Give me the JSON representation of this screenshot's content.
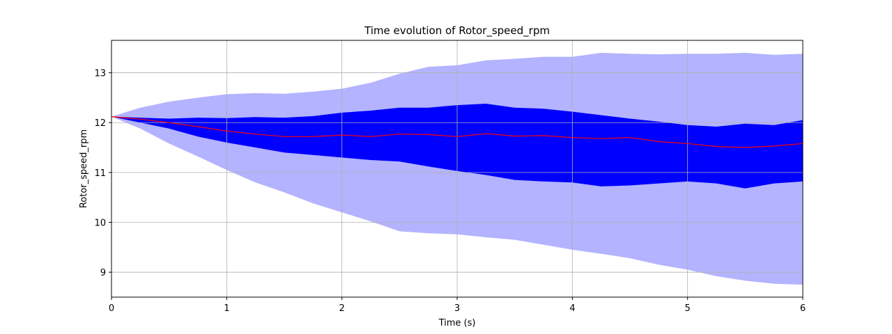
{
  "chart_data": {
    "type": "area",
    "title": "Time evolution of Rotor_speed_rpm",
    "xlabel": "Time (s)",
    "ylabel": "Rotor_speed_rpm",
    "xlim": [
      0,
      6
    ],
    "ylim": [
      8.5,
      13.65
    ],
    "xticks": [
      0,
      1,
      2,
      3,
      4,
      5,
      6
    ],
    "yticks": [
      9,
      10,
      11,
      12,
      13
    ],
    "grid": true,
    "colors": {
      "outer_band": "#b3b3ff",
      "inner_band": "#0000ff",
      "mean_line": "#ff0000",
      "grid": "#b0b0b0"
    },
    "x": [
      0,
      0.25,
      0.5,
      0.75,
      1,
      1.25,
      1.5,
      1.75,
      2,
      2.25,
      2.5,
      2.75,
      3,
      3.25,
      3.5,
      3.75,
      4,
      4.25,
      4.5,
      4.75,
      5,
      5.25,
      5.5,
      5.75,
      6
    ],
    "series": [
      {
        "role": "outer-band",
        "upper": [
          12.12,
          12.3,
          12.42,
          12.5,
          12.57,
          12.59,
          12.58,
          12.62,
          12.68,
          12.8,
          12.98,
          13.12,
          13.15,
          13.25,
          13.28,
          13.32,
          13.32,
          13.4,
          13.38,
          13.37,
          13.38,
          13.38,
          13.4,
          13.36,
          13.38
        ],
        "lower": [
          12.12,
          11.88,
          11.58,
          11.32,
          11.05,
          10.8,
          10.6,
          10.38,
          10.2,
          10.02,
          9.82,
          9.78,
          9.76,
          9.7,
          9.65,
          9.55,
          9.45,
          9.37,
          9.28,
          9.15,
          9.05,
          8.92,
          8.83,
          8.77,
          8.75
        ]
      },
      {
        "role": "inner-band",
        "upper": [
          12.12,
          12.1,
          12.08,
          12.1,
          12.09,
          12.11,
          12.1,
          12.13,
          12.2,
          12.24,
          12.3,
          12.3,
          12.35,
          12.38,
          12.3,
          12.28,
          12.22,
          12.15,
          12.08,
          12.02,
          11.95,
          11.92,
          11.98,
          11.95,
          12.05
        ],
        "lower": [
          12.12,
          12.0,
          11.88,
          11.72,
          11.6,
          11.5,
          11.4,
          11.35,
          11.3,
          11.25,
          11.22,
          11.12,
          11.03,
          10.95,
          10.85,
          10.82,
          10.8,
          10.72,
          10.74,
          10.78,
          10.82,
          10.78,
          10.68,
          10.78,
          10.82
        ]
      },
      {
        "role": "mean-line",
        "values": [
          12.12,
          12.07,
          12.0,
          11.92,
          11.83,
          11.77,
          11.72,
          11.72,
          11.75,
          11.72,
          11.77,
          11.76,
          11.72,
          11.78,
          11.73,
          11.74,
          11.7,
          11.68,
          11.7,
          11.62,
          11.58,
          11.52,
          11.5,
          11.53,
          11.58
        ]
      }
    ]
  }
}
